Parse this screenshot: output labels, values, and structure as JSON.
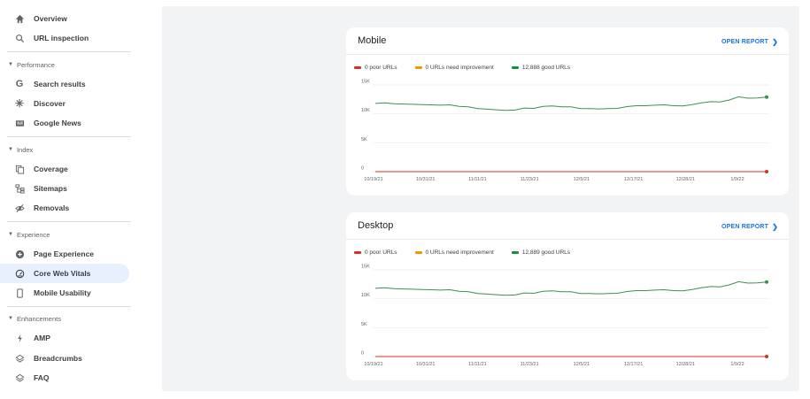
{
  "sidebar": {
    "items": [
      {
        "label": "Overview",
        "icon": "home-icon"
      },
      {
        "label": "URL inspection",
        "icon": "search-icon"
      },
      {
        "section": "Performance"
      },
      {
        "label": "Search results",
        "icon": "google-g-icon"
      },
      {
        "label": "Discover",
        "icon": "asterisk-icon"
      },
      {
        "label": "Google News",
        "icon": "news-icon"
      },
      {
        "section": "Index"
      },
      {
        "label": "Coverage",
        "icon": "copy-icon"
      },
      {
        "label": "Sitemaps",
        "icon": "sitemap-icon"
      },
      {
        "label": "Removals",
        "icon": "eye-off-icon"
      },
      {
        "section": "Experience"
      },
      {
        "label": "Page Experience",
        "icon": "plus-circle-icon"
      },
      {
        "label": "Core Web Vitals",
        "icon": "speedometer-icon",
        "active": true
      },
      {
        "label": "Mobile Usability",
        "icon": "phone-icon"
      },
      {
        "section": "Enhancements"
      },
      {
        "label": "AMP",
        "icon": "bolt-icon"
      },
      {
        "label": "Breadcrumbs",
        "icon": "layers-icon"
      },
      {
        "label": "FAQ",
        "icon": "layers-icon"
      }
    ]
  },
  "cards": [
    {
      "title": "Mobile",
      "open_report": "OPEN REPORT",
      "legend": {
        "poor": "0 poor URLs",
        "needs": "0 URLs need improvement",
        "good": "12,888 good URLs"
      }
    },
    {
      "title": "Desktop",
      "open_report": "OPEN REPORT",
      "legend": {
        "poor": "0 poor URLs",
        "needs": "0 URLs need improvement",
        "good": "12,889 good URLs"
      }
    }
  ],
  "colors": {
    "poor": "#d93025",
    "needs": "#f29900",
    "good": "#1e8e3e",
    "good_line": "#3c8f55",
    "accent": "#1a73e8",
    "active_bg": "#e8f0fe"
  },
  "chart_data": [
    {
      "type": "line",
      "title": "Mobile",
      "yticks": [
        "15K",
        "10K",
        "5K",
        "0"
      ],
      "ylim": [
        0,
        15000
      ],
      "xticks": [
        "10/19/21",
        "10/31/21",
        "11/11/21",
        "11/23/21",
        "12/5/21",
        "12/17/21",
        "12/28/21",
        "1/9/22"
      ],
      "series": [
        {
          "name": "0 poor URLs",
          "values": [
            0,
            0,
            0,
            0,
            0,
            0,
            0,
            0,
            0,
            0,
            0,
            0,
            0,
            0,
            0,
            0,
            0,
            0,
            0,
            0,
            0,
            0,
            0,
            0,
            0,
            0,
            0,
            0,
            0,
            0,
            0,
            0,
            0,
            0,
            0,
            0,
            0,
            0,
            0,
            0,
            0,
            0,
            0
          ]
        },
        {
          "name": "12,888 good URLs",
          "values": [
            11800,
            11900,
            11750,
            11700,
            11650,
            11600,
            11550,
            11500,
            11550,
            11300,
            11200,
            10900,
            10800,
            10700,
            10600,
            10650,
            11000,
            10950,
            11300,
            11350,
            11200,
            11200,
            10900,
            10900,
            10850,
            10900,
            10950,
            11250,
            11400,
            11400,
            11500,
            11550,
            11400,
            11350,
            11600,
            11900,
            12100,
            12050,
            12400,
            12950,
            12700,
            12750,
            12888
          ]
        }
      ]
    },
    {
      "type": "line",
      "title": "Desktop",
      "yticks": [
        "15K",
        "10K",
        "5K",
        "0"
      ],
      "ylim": [
        0,
        15000
      ],
      "xticks": [
        "10/19/21",
        "10/31/21",
        "11/11/21",
        "11/23/21",
        "12/5/21",
        "12/17/21",
        "12/28/21",
        "1/9/22"
      ],
      "series": [
        {
          "name": "0 poor URLs",
          "values": [
            0,
            0,
            0,
            0,
            0,
            0,
            0,
            0,
            0,
            0,
            0,
            0,
            0,
            0,
            0,
            0,
            0,
            0,
            0,
            0,
            0,
            0,
            0,
            0,
            0,
            0,
            0,
            0,
            0,
            0,
            0,
            0,
            0,
            0,
            0,
            0,
            0,
            0,
            0,
            0,
            0,
            0,
            0
          ]
        },
        {
          "name": "12,889 good URLs",
          "values": [
            11800,
            11900,
            11750,
            11700,
            11650,
            11600,
            11550,
            11500,
            11550,
            11300,
            11200,
            10900,
            10800,
            10700,
            10600,
            10650,
            11000,
            10950,
            11300,
            11350,
            11200,
            11200,
            10900,
            10900,
            10850,
            10900,
            10950,
            11250,
            11400,
            11400,
            11500,
            11550,
            11400,
            11350,
            11600,
            11900,
            12100,
            12050,
            12400,
            12950,
            12700,
            12750,
            12889
          ]
        }
      ]
    }
  ]
}
